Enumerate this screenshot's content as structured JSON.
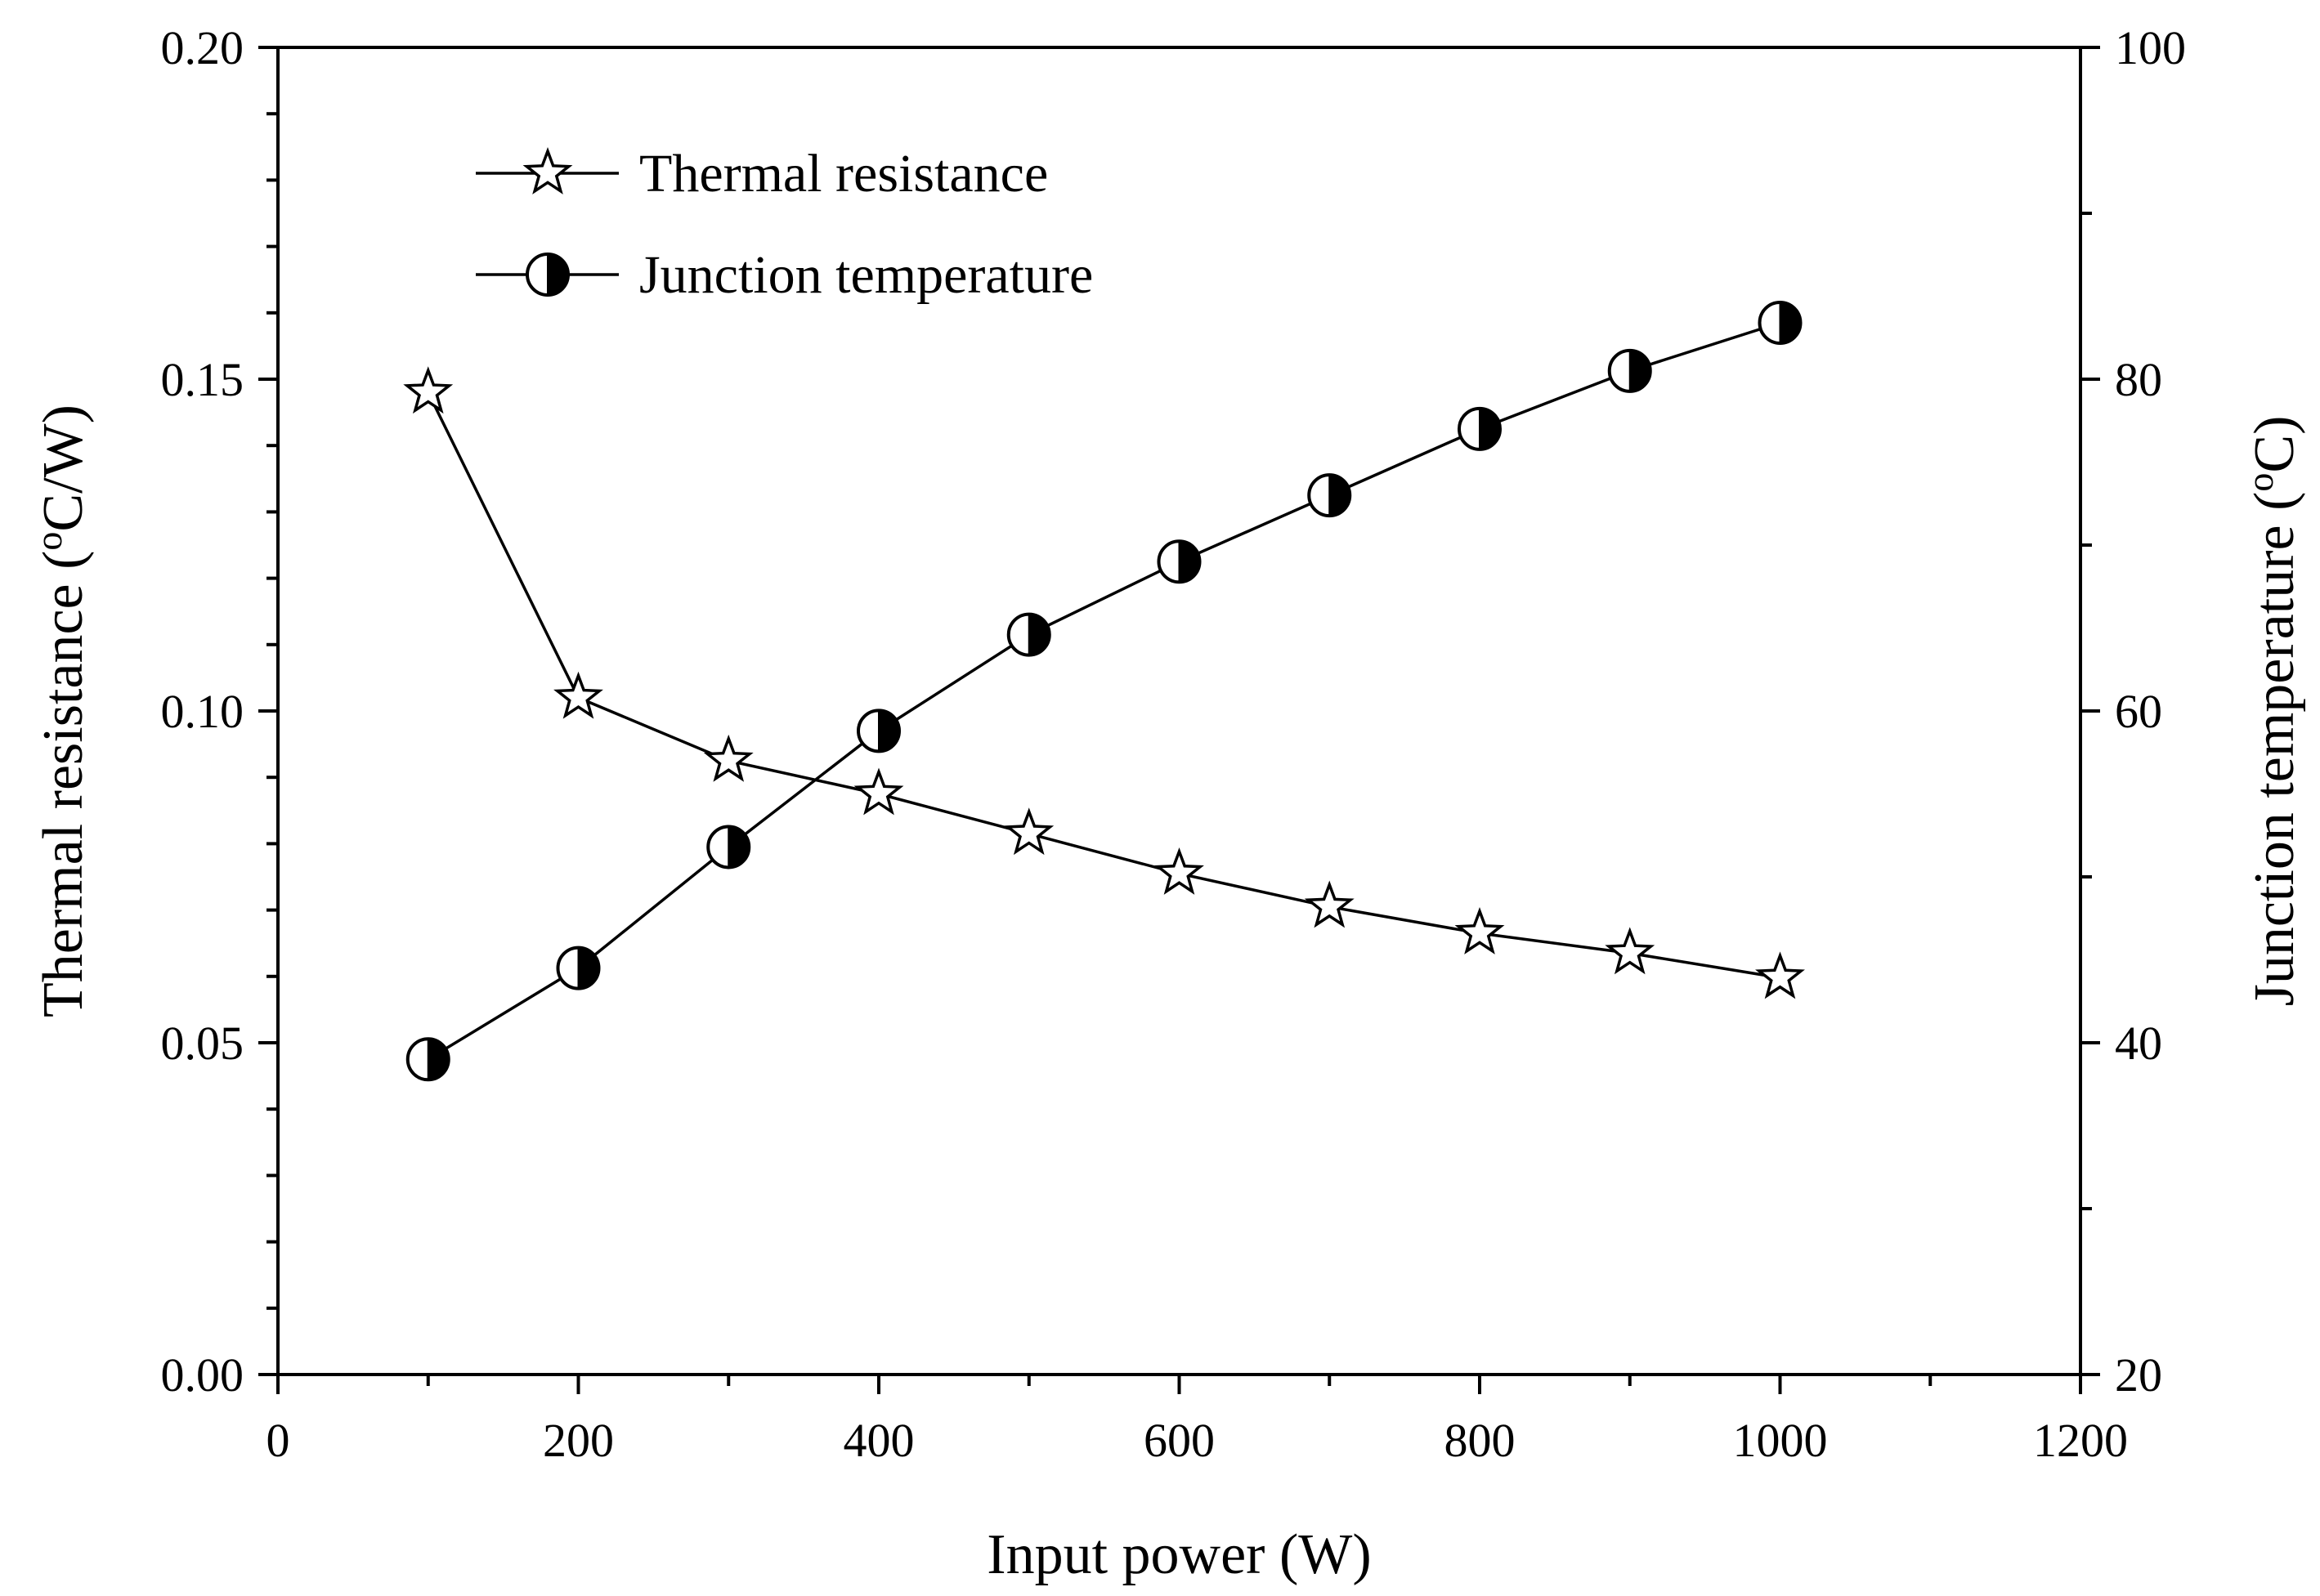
{
  "chart_data": {
    "type": "line",
    "title": "",
    "xlabel": "Input power (W)",
    "ylabel_left": {
      "main": "Thermal resistance (",
      "sup": "o",
      "rest": "C/W)"
    },
    "ylabel_right": {
      "main": "Junction temperature (",
      "sup": "o",
      "rest": "C)"
    },
    "xlim": [
      0,
      1200
    ],
    "ylim_left": [
      0.0,
      0.2
    ],
    "ylim_right": [
      20,
      100
    ],
    "x_ticks": [
      "0",
      "200",
      "400",
      "600",
      "800",
      "1000",
      "1200"
    ],
    "x_tick_values": [
      0,
      200,
      400,
      600,
      800,
      1000,
      1200
    ],
    "y_left_ticks": [
      "0.00",
      "0.05",
      "0.10",
      "0.15",
      "0.20"
    ],
    "y_left_tick_values": [
      0.0,
      0.05,
      0.1,
      0.15,
      0.2
    ],
    "y_right_ticks": [
      "20",
      "40",
      "60",
      "80",
      "100"
    ],
    "y_right_tick_values": [
      20,
      40,
      60,
      80,
      100
    ],
    "grid": false,
    "legend_position": "top-left",
    "series": [
      {
        "name": "Thermal resistance",
        "axis": "left",
        "marker": "star",
        "x": [
          100,
          200,
          300,
          400,
          500,
          600,
          700,
          800,
          900,
          1000
        ],
        "values": [
          0.148,
          0.102,
          0.0925,
          0.0875,
          0.0815,
          0.0755,
          0.0705,
          0.0665,
          0.0635,
          0.0598
        ]
      },
      {
        "name": "Junction temperature",
        "axis": "right",
        "marker": "half-filled-circle",
        "x": [
          100,
          200,
          300,
          400,
          500,
          600,
          700,
          800,
          900,
          1000
        ],
        "values": [
          39.0,
          44.5,
          51.8,
          58.8,
          64.6,
          69.0,
          73.0,
          77.0,
          80.5,
          83.4
        ]
      }
    ]
  }
}
